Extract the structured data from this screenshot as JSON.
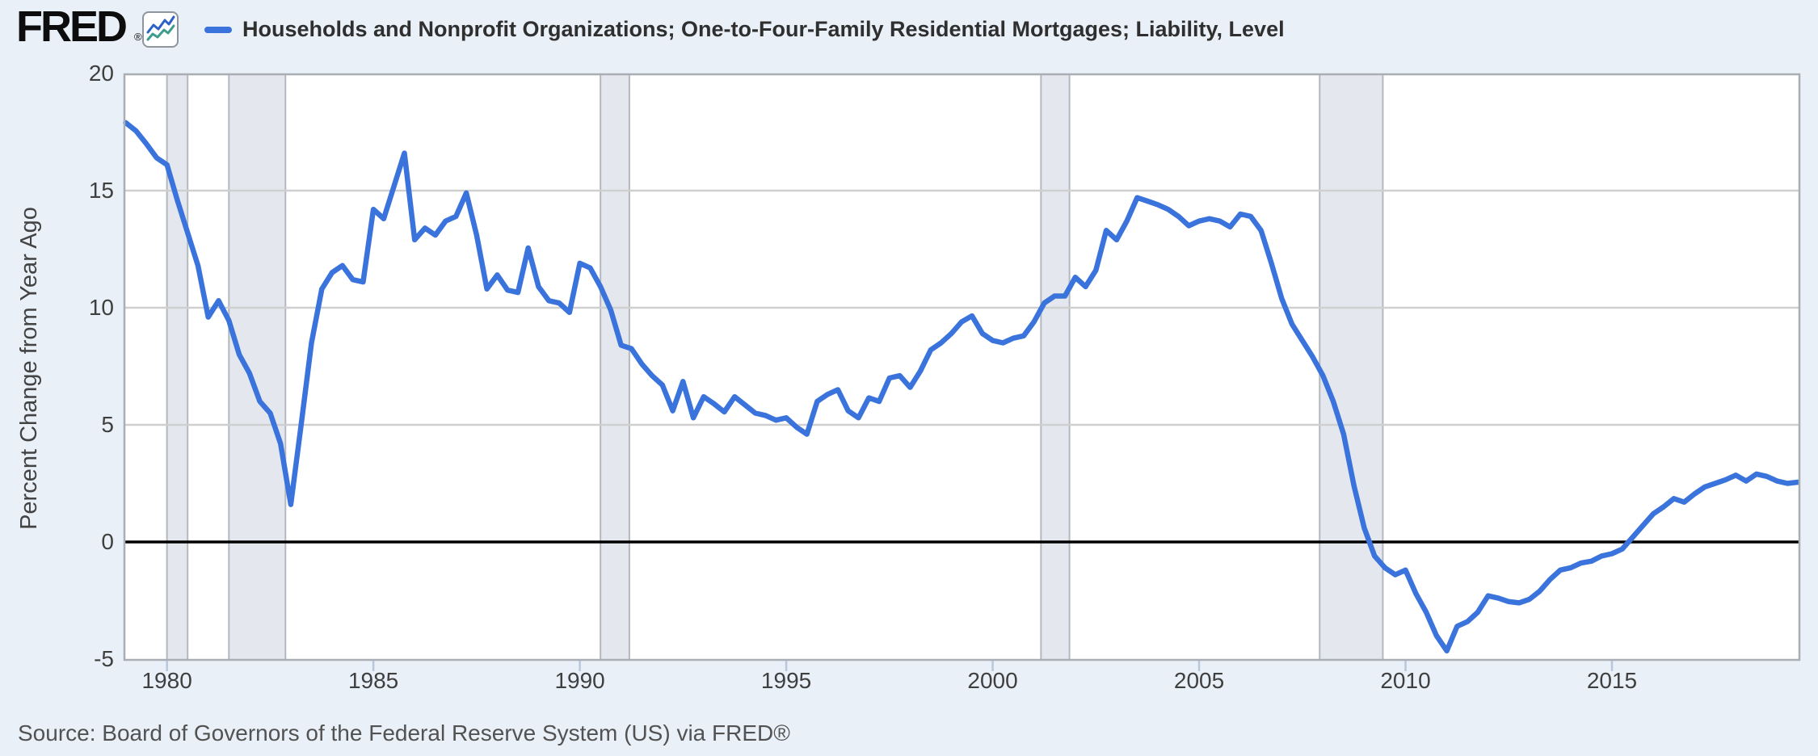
{
  "header": {
    "logo_text": "FRED",
    "registered_mark": "®",
    "legend_label": "Households and Nonprofit Organizations; One-to-Four-Family Residential Mortgages; Liability, Level"
  },
  "source_line": "Source: Board of Governors of the Federal Reserve System (US) via FRED®",
  "colors": {
    "page_background": "#e9f0f8",
    "plot_background": "#ffffff",
    "series_line": "#3a73db",
    "zero_line": "#000000",
    "gridline": "#cfcfcf",
    "plot_border": "#a9aeb4",
    "recession_band": "#e4e8ee",
    "recession_band_edge": "#b3b8bf",
    "tick_mark": "#b9c6dc",
    "icon_line_blue": "#2c61c9",
    "icon_line_teal": "#3f9b8e",
    "title_text": "#2f2f2f",
    "axis_text": "#3f3f3f",
    "source_text": "#525252"
  },
  "chart_data": {
    "type": "line",
    "title": "Households and Nonprofit Organizations; One-to-Four-Family Residential Mortgages; Liability, Level",
    "xlabel": "",
    "ylabel": "Percent Change from Year Ago",
    "legend_position": "top-left",
    "grid": true,
    "x_start": 1979.0,
    "x_step": 0.25,
    "frequency": "quarterly",
    "xlim": [
      1978.95,
      2019.56
    ],
    "ylim": [
      -5.07,
      20
    ],
    "yticks": [
      -5,
      0,
      5,
      10,
      15,
      20
    ],
    "xticks": [
      1980,
      1985,
      1990,
      1995,
      2000,
      2005,
      2010,
      2015
    ],
    "recessions": [
      [
        1980.0,
        1980.5
      ],
      [
        1981.5,
        1982.87
      ],
      [
        1990.5,
        1991.2
      ],
      [
        2001.17,
        2001.86
      ],
      [
        2007.92,
        2009.45
      ]
    ],
    "values": [
      17.9,
      17.55,
      17.0,
      16.4,
      16.1,
      14.6,
      13.2,
      11.8,
      9.6,
      10.3,
      9.45,
      8.0,
      7.2,
      6.0,
      5.5,
      4.2,
      1.6,
      5.0,
      8.5,
      10.8,
      11.5,
      11.8,
      11.2,
      11.1,
      14.2,
      13.8,
      15.2,
      16.6,
      12.9,
      13.4,
      13.1,
      13.7,
      13.9,
      14.9,
      13.1,
      10.8,
      11.4,
      10.75,
      10.65,
      12.55,
      10.9,
      10.3,
      10.2,
      9.8,
      11.9,
      11.7,
      10.9,
      9.9,
      8.4,
      8.25,
      7.6,
      7.1,
      6.7,
      5.6,
      6.85,
      5.3,
      6.2,
      5.9,
      5.55,
      6.2,
      5.85,
      5.5,
      5.4,
      5.2,
      5.3,
      4.9,
      4.6,
      6.0,
      6.3,
      6.5,
      5.6,
      5.3,
      6.15,
      6.0,
      7.0,
      7.1,
      6.6,
      7.3,
      8.2,
      8.5,
      8.9,
      9.4,
      9.65,
      8.9,
      8.6,
      8.5,
      8.7,
      8.8,
      9.4,
      10.2,
      10.5,
      10.5,
      11.3,
      10.9,
      11.6,
      13.3,
      12.9,
      13.7,
      14.7,
      14.55,
      14.4,
      14.2,
      13.9,
      13.5,
      13.7,
      13.8,
      13.7,
      13.45,
      14.0,
      13.9,
      13.3,
      11.9,
      10.4,
      9.3,
      8.6,
      7.9,
      7.1,
      6.0,
      4.6,
      2.4,
      0.6,
      -0.6,
      -1.1,
      -1.4,
      -1.2,
      -2.2,
      -3.0,
      -4.0,
      -4.65,
      -3.6,
      -3.4,
      -3.0,
      -2.3,
      -2.4,
      -2.55,
      -2.6,
      -2.45,
      -2.1,
      -1.6,
      -1.2,
      -1.1,
      -0.9,
      -0.82,
      -0.6,
      -0.5,
      -0.3,
      0.2,
      0.7,
      1.2,
      1.5,
      1.85,
      1.7,
      2.05,
      2.35,
      2.5,
      2.65,
      2.85,
      2.6,
      2.9,
      2.8,
      2.6,
      2.5,
      2.55
    ]
  }
}
